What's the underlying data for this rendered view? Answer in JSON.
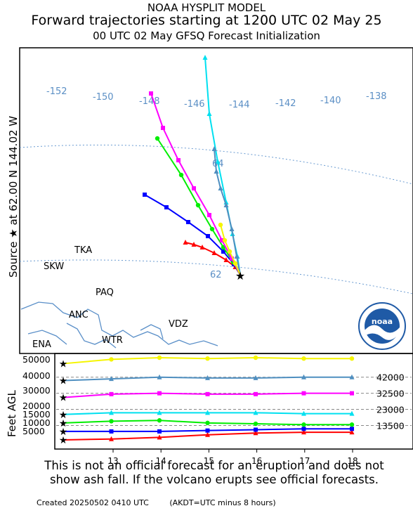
{
  "header": {
    "model": "NOAA HYSPLIT MODEL",
    "title": "Forward trajectories starting at 1200 UTC 02 May 25",
    "subtitle": "00 UTC 02 May    GFSQ  Forecast Initialization"
  },
  "source_label": "Source ★  at   62.00 N  144.02 W",
  "map": {
    "longitude_labels": [
      "-152",
      "-150",
      "-148",
      "-146",
      "-144",
      "-142",
      "-140",
      "-138"
    ],
    "latitude_labels": [
      "64",
      "62"
    ],
    "stations": [
      "TKA",
      "SKW",
      "PAQ",
      "ANC",
      "VDZ",
      "WTR",
      "ENA"
    ],
    "logo_text": "noaa"
  },
  "vertical": {
    "ylabel": "Feet AGL",
    "y_ticks": [
      "50000",
      "40000",
      "30000",
      "20000",
      "15000",
      "10000",
      "5000"
    ],
    "x_ticks": [
      "13",
      "14",
      "15",
      "16",
      "17",
      "18"
    ],
    "right_labels": [
      "42000",
      "32500",
      "23000",
      "13500"
    ]
  },
  "disclaimer": {
    "line1": "This is not an official forecast for an eruption and does not",
    "line2": "show ash fall. If the volcano erupts see official forecasts."
  },
  "footer": {
    "created": "Created 20250502 0410 UTC",
    "note": "(AKDT=UTC minus 8 hours)"
  },
  "trajectories": [
    {
      "color": "#ff0000",
      "marker": "triangle",
      "start_ft": 5000,
      "heights_ft": [
        5000,
        5500,
        6500,
        8000,
        9000,
        9500,
        9500
      ]
    },
    {
      "color": "#0000ff",
      "marker": "square",
      "start_ft": 10000,
      "heights_ft": [
        10000,
        10000,
        10000,
        10500,
        11000,
        11500,
        11500
      ]
    },
    {
      "color": "#00ee00",
      "marker": "circle",
      "start_ft": 15000,
      "heights_ft": [
        15000,
        16000,
        16500,
        15000,
        14500,
        14000,
        14000
      ]
    },
    {
      "color": "#00e0f0",
      "marker": "triangle",
      "start_ft": 20000,
      "heights_ft": [
        20000,
        21000,
        21000,
        21000,
        21000,
        20500,
        20500
      ]
    },
    {
      "color": "#ff00ff",
      "marker": "square",
      "start_ft": 30000,
      "heights_ft": [
        30000,
        32000,
        32500,
        32000,
        32000,
        32500,
        32500
      ]
    },
    {
      "color": "#4f8fc0",
      "marker": "triangle",
      "start_ft": 40000,
      "heights_ft": [
        40000,
        41000,
        42000,
        41500,
        41500,
        42000,
        42000
      ]
    },
    {
      "color": "#f5f500",
      "marker": "circle",
      "start_ft": 50000,
      "heights_ft": [
        50000,
        52500,
        53500,
        53000,
        53500,
        53000,
        53000
      ]
    }
  ]
}
